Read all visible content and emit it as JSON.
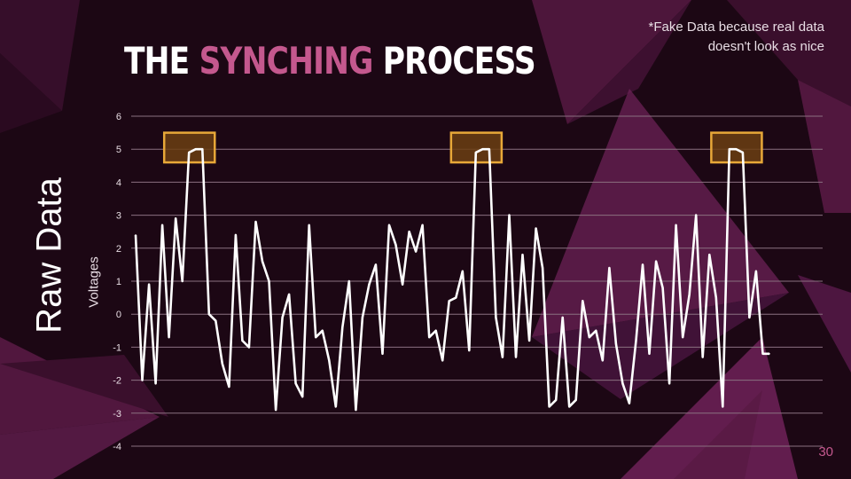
{
  "slide": {
    "title_part1": "THE ",
    "title_highlight": "SYNCHING",
    "title_part2": " PROCESS",
    "note": "*Fake Data because real data\ndoesn't look as nice",
    "side_title": "Raw Data",
    "page_number": "30"
  },
  "colors": {
    "background": "#1c0714",
    "accent": "#c4588e",
    "line": "#ffffff",
    "highlight_box": "#e8a838",
    "highlight_fill": "#6b3e12",
    "grid": "#8a7080"
  },
  "chart_data": {
    "type": "line",
    "ylabel": "Voltages",
    "xlabel": "",
    "title": "",
    "ylim": [
      -4,
      6
    ],
    "yticks": [
      -4,
      -3,
      -2,
      -1,
      0,
      1,
      2,
      3,
      4,
      5,
      6
    ],
    "grid": true,
    "series": [
      {
        "values": [
          2.4,
          -2.0,
          0.9,
          -2.1,
          2.7,
          -0.7,
          2.9,
          1.0,
          4.9,
          5.0,
          5.0,
          0.0,
          -0.2,
          -1.5,
          -2.2,
          2.4,
          -0.8,
          -1.0,
          2.8,
          1.6,
          1.0,
          -2.9,
          -0.1,
          0.6,
          -2.1,
          -2.5,
          2.7,
          -0.7,
          -0.5,
          -1.4,
          -2.8,
          -0.4,
          1.0,
          -2.9,
          -0.1,
          0.9,
          1.5,
          -1.2,
          2.7,
          2.1,
          0.9,
          2.5,
          1.9,
          2.7,
          -0.7,
          -0.5,
          -1.4,
          0.4,
          0.5,
          1.3,
          -1.1,
          4.9,
          5.0,
          5.0,
          -0.1,
          -1.3,
          3.0,
          -1.3,
          1.8,
          -0.8,
          2.6,
          1.4,
          -2.8,
          -2.6,
          -0.1,
          -2.8,
          -2.6,
          0.4,
          -0.7,
          -0.5,
          -1.4,
          1.4,
          -0.9,
          -2.1,
          -2.7,
          -0.8,
          1.5,
          -1.2,
          1.6,
          0.8,
          -2.1,
          2.7,
          -0.7,
          0.6,
          3.0,
          -1.3,
          1.8,
          0.5,
          -2.8,
          5.0,
          5.0,
          4.9,
          -0.1,
          1.3,
          -1.2,
          -1.2
        ]
      }
    ],
    "highlights": [
      {
        "x_start": 8,
        "x_end": 10,
        "y_low": 4.6,
        "y_high": 5.5
      },
      {
        "x_start": 51,
        "x_end": 53,
        "y_low": 4.6,
        "y_high": 5.5
      },
      {
        "x_start": 90,
        "x_end": 92,
        "y_low": 4.6,
        "y_high": 5.5
      }
    ]
  }
}
